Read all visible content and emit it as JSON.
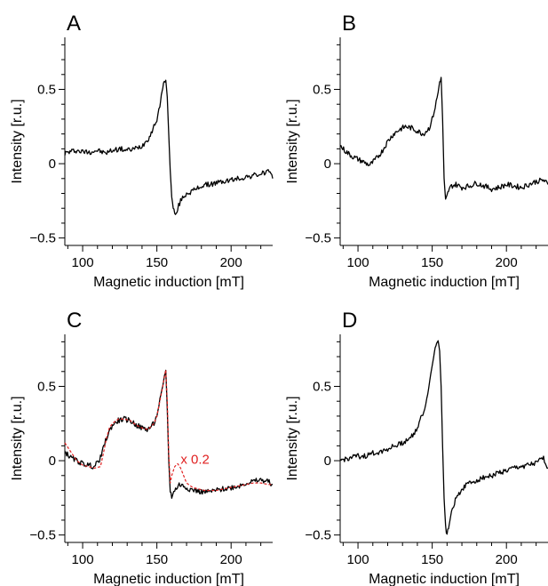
{
  "chart_data": [
    {
      "type": "line",
      "panel_label": "A",
      "xlabel": "Magnetic induction [mT]",
      "ylabel": "Intensity [r.u.]",
      "xlim": [
        88,
        228
      ],
      "ylim": [
        -0.55,
        0.85
      ],
      "x_ticks": [
        100,
        150,
        200
      ],
      "x_minor_ticks": [
        90,
        110,
        120,
        130,
        140,
        160,
        170,
        180,
        190,
        210,
        220
      ],
      "y_ticks": [
        -0.5,
        0,
        0.5
      ],
      "y_tick_labels": [
        "−0.5",
        "0",
        "0.5"
      ],
      "y_minor_ticks": [
        -0.4,
        -0.3,
        -0.2,
        -0.1,
        0.1,
        0.2,
        0.3,
        0.4,
        0.6,
        0.7,
        0.8
      ],
      "series": [
        {
          "color": "#000000",
          "style": "solid",
          "x": [
            88,
            95,
            100,
            105,
            110,
            115,
            120,
            125,
            130,
            135,
            140,
            145,
            148,
            150,
            152,
            153,
            154,
            155,
            156,
            157,
            158,
            159,
            160,
            161,
            162,
            163,
            164,
            166,
            168,
            170,
            175,
            180,
            185,
            190,
            195,
            200,
            205,
            210,
            215,
            220,
            225,
            228
          ],
          "y": [
            0.07,
            0.09,
            0.08,
            0.08,
            0.09,
            0.07,
            0.09,
            0.1,
            0.09,
            0.1,
            0.12,
            0.18,
            0.25,
            0.3,
            0.38,
            0.46,
            0.52,
            0.55,
            0.56,
            0.45,
            0.2,
            -0.05,
            -0.22,
            -0.3,
            -0.33,
            -0.35,
            -0.3,
            -0.25,
            -0.22,
            -0.2,
            -0.18,
            -0.15,
            -0.14,
            -0.13,
            -0.12,
            -0.11,
            -0.1,
            -0.09,
            -0.08,
            -0.07,
            -0.05,
            -0.1
          ]
        }
      ]
    },
    {
      "type": "line",
      "panel_label": "B",
      "xlabel": "Magnetic induction [mT]",
      "ylabel": "Intensity [r.u.]",
      "xlim": [
        88,
        228
      ],
      "ylim": [
        -0.55,
        0.85
      ],
      "x_ticks": [
        100,
        150,
        200
      ],
      "x_minor_ticks": [
        90,
        110,
        120,
        130,
        140,
        160,
        170,
        180,
        190,
        210,
        220
      ],
      "y_ticks": [
        -0.5,
        0,
        0.5
      ],
      "y_tick_labels": [
        "−0.5",
        "0",
        "0.5"
      ],
      "y_minor_ticks": [
        -0.4,
        -0.3,
        -0.2,
        -0.1,
        0.1,
        0.2,
        0.3,
        0.4,
        0.6,
        0.7,
        0.8
      ],
      "series": [
        {
          "color": "#000000",
          "style": "solid",
          "x": [
            88,
            92,
            96,
            100,
            104,
            108,
            112,
            116,
            120,
            124,
            128,
            132,
            136,
            140,
            144,
            148,
            150,
            152,
            154,
            155,
            156,
            157,
            158,
            159,
            160,
            161,
            163,
            166,
            170,
            175,
            180,
            185,
            190,
            195,
            200,
            205,
            210,
            215,
            220,
            225,
            228
          ],
          "y": [
            0.12,
            0.08,
            0.05,
            0.03,
            0.01,
            -0.01,
            0.03,
            0.08,
            0.15,
            0.2,
            0.23,
            0.25,
            0.24,
            0.22,
            0.2,
            0.24,
            0.3,
            0.38,
            0.48,
            0.55,
            0.58,
            0.3,
            -0.1,
            -0.25,
            -0.22,
            -0.18,
            -0.15,
            -0.14,
            -0.16,
            -0.15,
            -0.13,
            -0.15,
            -0.17,
            -0.16,
            -0.14,
            -0.15,
            -0.16,
            -0.14,
            -0.12,
            -0.11,
            -0.14
          ]
        }
      ]
    },
    {
      "type": "line",
      "panel_label": "C",
      "xlabel": "Magnetic induction [mT]",
      "ylabel": "Intensity [r.u.]",
      "xlim": [
        88,
        228
      ],
      "ylim": [
        -0.55,
        0.85
      ],
      "x_ticks": [
        100,
        150,
        200
      ],
      "x_minor_ticks": [
        90,
        110,
        120,
        130,
        140,
        160,
        170,
        180,
        190,
        210,
        220
      ],
      "y_ticks": [
        -0.5,
        0,
        0.5
      ],
      "y_tick_labels": [
        "−0.5",
        "0",
        "0.5"
      ],
      "y_minor_ticks": [
        -0.4,
        -0.3,
        -0.2,
        -0.1,
        0.1,
        0.2,
        0.3,
        0.4,
        0.6,
        0.7,
        0.8
      ],
      "annotations": [
        {
          "text": "x 0.2",
          "x": 166,
          "y": -0.02,
          "color": "#e02020"
        }
      ],
      "series": [
        {
          "color": "#000000",
          "style": "solid",
          "x": [
            88,
            92,
            96,
            100,
            104,
            108,
            112,
            116,
            120,
            124,
            128,
            132,
            136,
            140,
            144,
            148,
            150,
            152,
            154,
            155,
            156,
            157,
            158,
            159,
            160,
            162,
            165,
            168,
            172,
            176,
            180,
            185,
            190,
            195,
            200,
            205,
            210,
            215,
            220,
            225,
            228
          ],
          "y": [
            0.06,
            0.02,
            0.0,
            -0.02,
            -0.03,
            -0.04,
            0.02,
            0.15,
            0.24,
            0.27,
            0.28,
            0.27,
            0.24,
            0.22,
            0.21,
            0.25,
            0.3,
            0.4,
            0.5,
            0.56,
            0.61,
            0.35,
            0.0,
            -0.2,
            -0.24,
            -0.2,
            -0.16,
            -0.17,
            -0.19,
            -0.2,
            -0.21,
            -0.21,
            -0.2,
            -0.19,
            -0.18,
            -0.17,
            -0.15,
            -0.14,
            -0.13,
            -0.14,
            -0.16
          ]
        },
        {
          "color": "#e02020",
          "style": "dashed",
          "x": [
            88,
            92,
            96,
            100,
            104,
            108,
            112,
            114,
            116,
            118,
            120,
            124,
            128,
            132,
            136,
            140,
            144,
            148,
            150,
            152,
            154,
            155,
            156,
            157,
            158,
            159,
            160,
            162,
            164,
            166,
            168,
            170,
            174,
            178,
            182,
            186,
            190,
            195,
            200,
            205,
            210,
            215,
            220,
            225,
            228
          ],
          "y": [
            0.12,
            0.06,
            0.0,
            -0.03,
            -0.04,
            -0.05,
            -0.04,
            0.05,
            0.15,
            0.22,
            0.25,
            0.28,
            0.28,
            0.27,
            0.24,
            0.22,
            0.21,
            0.25,
            0.3,
            0.4,
            0.5,
            0.56,
            0.61,
            0.4,
            0.05,
            -0.15,
            -0.1,
            -0.04,
            -0.02,
            -0.05,
            -0.1,
            -0.15,
            -0.18,
            -0.19,
            -0.2,
            -0.2,
            -0.2,
            -0.19,
            -0.18,
            -0.17,
            -0.16,
            -0.15,
            -0.15,
            -0.16,
            -0.16
          ]
        }
      ]
    },
    {
      "type": "line",
      "panel_label": "D",
      "xlabel": "Magnetic induction [mT]",
      "ylabel": "Intensity [r.u.]",
      "xlim": [
        88,
        228
      ],
      "ylim": [
        -0.55,
        0.85
      ],
      "x_ticks": [
        100,
        150,
        200
      ],
      "x_minor_ticks": [
        90,
        110,
        120,
        130,
        140,
        160,
        170,
        180,
        190,
        210,
        220
      ],
      "y_ticks": [
        -0.5,
        0,
        0.5
      ],
      "y_tick_labels": [
        "−0.5",
        "0",
        "0.5"
      ],
      "y_minor_ticks": [
        -0.4,
        -0.3,
        -0.2,
        -0.1,
        0.1,
        0.2,
        0.3,
        0.4,
        0.6,
        0.7,
        0.8
      ],
      "series": [
        {
          "color": "#000000",
          "style": "solid",
          "x": [
            88,
            95,
            100,
            105,
            110,
            115,
            120,
            125,
            130,
            135,
            140,
            143,
            145,
            147,
            149,
            151,
            152,
            153,
            154,
            155,
            156,
            157,
            158,
            159,
            160,
            161,
            162,
            163,
            165,
            168,
            171,
            175,
            180,
            185,
            190,
            195,
            200,
            205,
            210,
            215,
            220,
            225,
            228
          ],
          "y": [
            0.0,
            0.02,
            0.03,
            0.03,
            0.05,
            0.06,
            0.08,
            0.1,
            0.12,
            0.15,
            0.22,
            0.3,
            0.35,
            0.45,
            0.58,
            0.7,
            0.76,
            0.8,
            0.81,
            0.74,
            0.5,
            0.1,
            -0.25,
            -0.45,
            -0.49,
            -0.46,
            -0.4,
            -0.34,
            -0.28,
            -0.22,
            -0.18,
            -0.15,
            -0.13,
            -0.11,
            -0.1,
            -0.08,
            -0.07,
            -0.05,
            -0.04,
            -0.03,
            -0.02,
            0.02,
            -0.05
          ]
        }
      ]
    }
  ]
}
